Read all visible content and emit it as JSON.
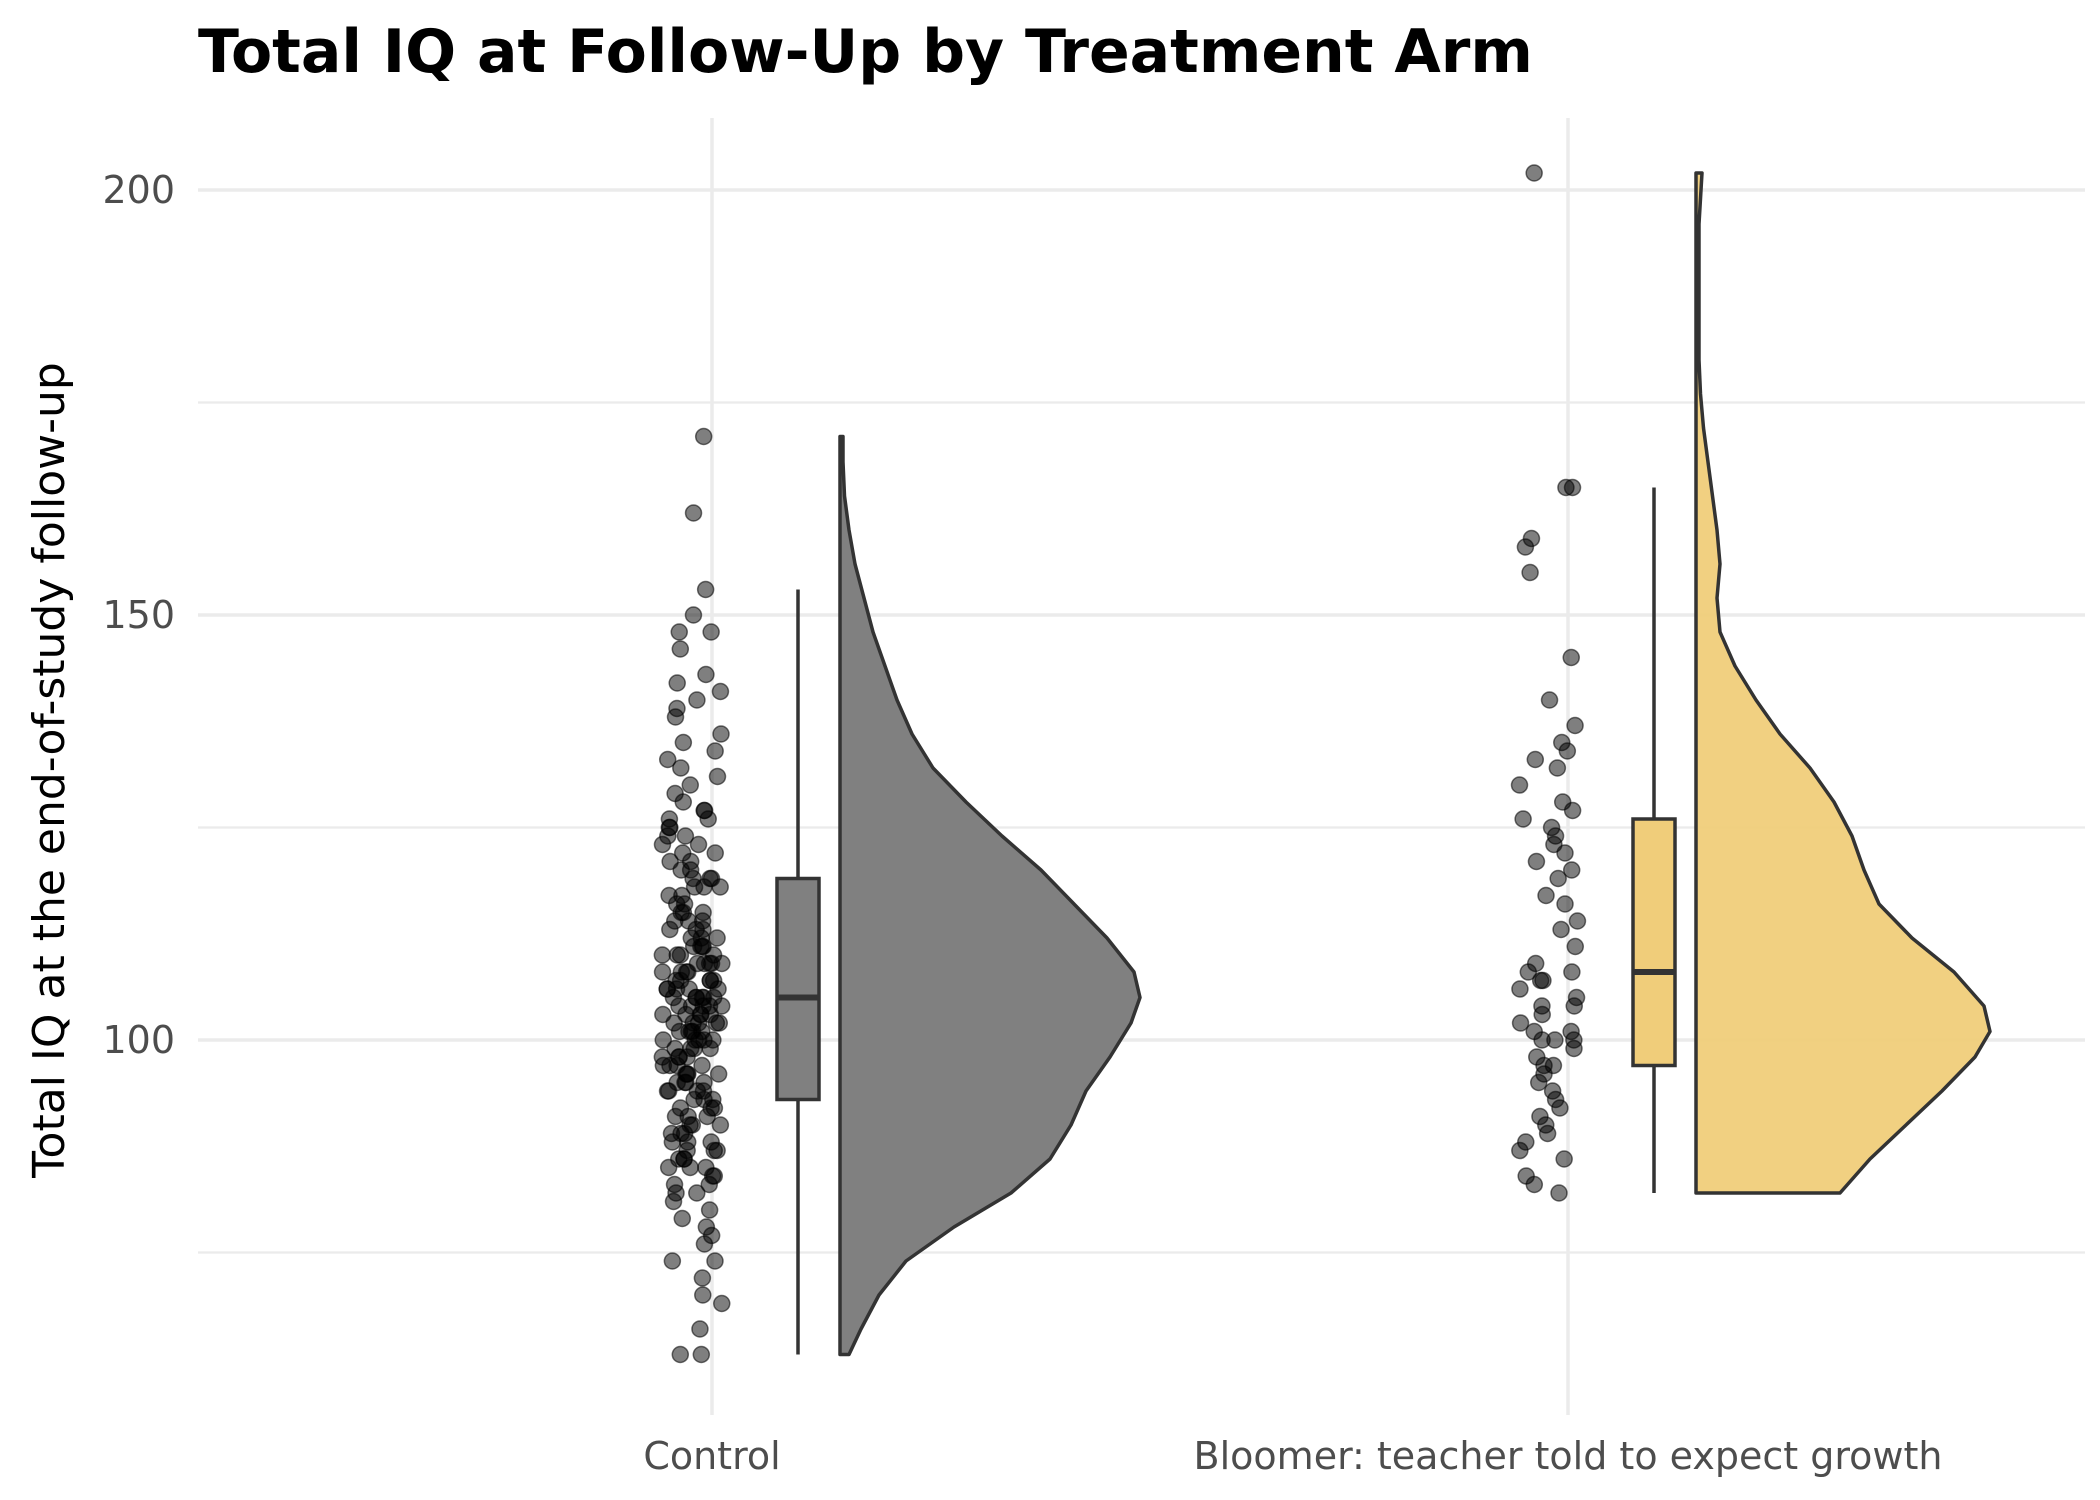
{
  "chart_data": {
    "type": "raincloud",
    "title": "Total IQ at Follow-Up by Treatment Arm",
    "xlabel": "",
    "ylabel": "Total IQ at the end-of-study follow-up",
    "ylim": [
      58,
      208
    ],
    "yticks": [
      100,
      150,
      200
    ],
    "grid": true,
    "legend": "none",
    "categories": [
      "Control",
      "Bloomer: teacher told to expect growth"
    ],
    "colors": {
      "Control": "#808080",
      "Bloomer: teacher told to expect growth": "#f0cd7a",
      "outline": "#333333",
      "points": "#000000"
    },
    "groups": [
      {
        "name": "Control",
        "box": {
          "min": 63,
          "q1": 93,
          "median": 105,
          "q3": 119,
          "max": 153
        },
        "range": [
          63,
          171
        ],
        "density": [
          [
            63,
            0.03
          ],
          [
            66,
            0.07
          ],
          [
            70,
            0.13
          ],
          [
            74,
            0.22
          ],
          [
            78,
            0.38
          ],
          [
            82,
            0.57
          ],
          [
            86,
            0.7
          ],
          [
            90,
            0.77
          ],
          [
            94,
            0.82
          ],
          [
            98,
            0.9
          ],
          [
            102,
            0.97
          ],
          [
            105,
            1.0
          ],
          [
            108,
            0.98
          ],
          [
            112,
            0.89
          ],
          [
            116,
            0.78
          ],
          [
            120,
            0.67
          ],
          [
            124,
            0.54
          ],
          [
            128,
            0.42
          ],
          [
            132,
            0.31
          ],
          [
            136,
            0.24
          ],
          [
            140,
            0.19
          ],
          [
            144,
            0.15
          ],
          [
            148,
            0.11
          ],
          [
            152,
            0.08
          ],
          [
            156,
            0.05
          ],
          [
            160,
            0.03
          ],
          [
            164,
            0.015
          ],
          [
            168,
            0.01
          ],
          [
            171,
            0.01
          ]
        ],
        "points": [
          63,
          63,
          66,
          69,
          70,
          72,
          74,
          74,
          76,
          77,
          78,
          79,
          80,
          81,
          82,
          82,
          83,
          83,
          84,
          84,
          85,
          85,
          85,
          86,
          86,
          86,
          87,
          87,
          87,
          88,
          88,
          88,
          89,
          89,
          89,
          90,
          90,
          90,
          91,
          91,
          91,
          92,
          92,
          92,
          93,
          93,
          93,
          94,
          94,
          94,
          94,
          95,
          95,
          95,
          95,
          96,
          96,
          96,
          96,
          97,
          97,
          97,
          97,
          98,
          98,
          98,
          98,
          99,
          99,
          99,
          99,
          100,
          100,
          100,
          100,
          100,
          101,
          101,
          101,
          101,
          101,
          102,
          102,
          102,
          102,
          102,
          103,
          103,
          103,
          103,
          103,
          104,
          104,
          104,
          104,
          104,
          105,
          105,
          105,
          105,
          105,
          105,
          106,
          106,
          106,
          106,
          106,
          107,
          107,
          107,
          107,
          107,
          108,
          108,
          108,
          108,
          109,
          109,
          109,
          109,
          109,
          110,
          110,
          110,
          110,
          111,
          111,
          111,
          111,
          112,
          112,
          112,
          113,
          113,
          113,
          114,
          114,
          114,
          115,
          115,
          115,
          116,
          116,
          117,
          117,
          118,
          118,
          118,
          119,
          119,
          119,
          120,
          120,
          121,
          121,
          122,
          122,
          123,
          123,
          124,
          124,
          125,
          125,
          126,
          126,
          127,
          127,
          128,
          129,
          130,
          131,
          132,
          133,
          134,
          135,
          136,
          138,
          139,
          140,
          141,
          142,
          143,
          146,
          148,
          148,
          150,
          153,
          162,
          171
        ]
      },
      {
        "name": "Bloomer: teacher told to expect growth",
        "box": {
          "min": 82,
          "q1": 97,
          "median": 108,
          "q3": 126,
          "max": 165
        },
        "range": [
          82,
          202
        ],
        "density": [
          [
            82,
            0.48
          ],
          [
            86,
            0.58
          ],
          [
            90,
            0.7
          ],
          [
            94,
            0.82
          ],
          [
            98,
            0.93
          ],
          [
            101,
            0.98
          ],
          [
            104,
            0.96
          ],
          [
            108,
            0.86
          ],
          [
            112,
            0.72
          ],
          [
            116,
            0.61
          ],
          [
            120,
            0.56
          ],
          [
            124,
            0.52
          ],
          [
            128,
            0.46
          ],
          [
            132,
            0.38
          ],
          [
            136,
            0.28
          ],
          [
            140,
            0.2
          ],
          [
            144,
            0.13
          ],
          [
            148,
            0.08
          ],
          [
            152,
            0.07
          ],
          [
            156,
            0.08
          ],
          [
            160,
            0.07
          ],
          [
            164,
            0.055
          ],
          [
            168,
            0.04
          ],
          [
            172,
            0.025
          ],
          [
            176,
            0.015
          ],
          [
            180,
            0.01
          ],
          [
            184,
            0.01
          ],
          [
            190,
            0.01
          ],
          [
            196,
            0.01
          ],
          [
            202,
            0.02
          ]
        ],
        "points": [
          82,
          83,
          84,
          86,
          87,
          88,
          89,
          90,
          91,
          92,
          93,
          94,
          95,
          96,
          97,
          97,
          98,
          99,
          100,
          100,
          100,
          101,
          101,
          102,
          103,
          104,
          104,
          105,
          106,
          107,
          107,
          108,
          108,
          109,
          111,
          113,
          114,
          116,
          117,
          119,
          120,
          121,
          122,
          123,
          124,
          125,
          126,
          127,
          128,
          130,
          132,
          133,
          134,
          135,
          137,
          140,
          145,
          155,
          158,
          159,
          165,
          165,
          202
        ]
      }
    ]
  }
}
